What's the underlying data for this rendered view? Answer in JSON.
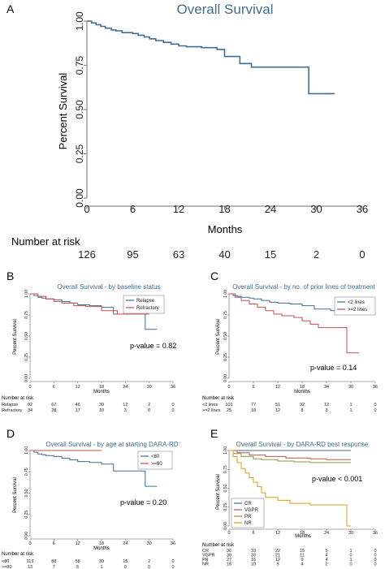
{
  "panels": {
    "A": {
      "label": "A",
      "title": "Overall Survival",
      "ylabel": "Percent Survival",
      "xlabel": "Months",
      "risk_title": "Number at risk",
      "risk": [
        "126",
        "95",
        "63",
        "40",
        "15",
        "2",
        "0"
      ]
    },
    "B": {
      "label": "B",
      "title": "Overall Survival - by baseline status",
      "ylabel": "Percent Survival",
      "xlabel": "Months",
      "pvalue": "p-value = 0.82",
      "risk_title": "Number at risk",
      "legend": [
        "Relapse",
        "Refractory"
      ],
      "risk_rows": [
        {
          "name": "Relapse",
          "values": [
            "92",
            "67",
            "46",
            "30",
            "12",
            "2",
            "0"
          ]
        },
        {
          "name": "Refractory",
          "values": [
            "34",
            "28",
            "17",
            "10",
            "3",
            "0",
            "0"
          ]
        }
      ]
    },
    "C": {
      "label": "C",
      "title": "Overall Survival - by no. of prior lines of treatment",
      "ylabel": "Percent Survival",
      "xlabel": "Months",
      "pvalue": "p-value = 0.14",
      "risk_title": "Number at risk",
      "legend": [
        "<2 lines",
        ">=2 lines"
      ],
      "risk_rows": [
        {
          "name": "<2 lines",
          "values": [
            "101",
            "77",
            "51",
            "32",
            "12",
            "1",
            "0"
          ]
        },
        {
          "name": ">=2 lines",
          "values": [
            "25",
            "18",
            "12",
            "8",
            "3",
            "1",
            "0"
          ]
        }
      ]
    },
    "D": {
      "label": "D",
      "title": "Overall Survival - by age at starting DARA-RD",
      "ylabel": "Percent Survival",
      "xlabel": "Months",
      "pvalue": "p-value = 0.20",
      "risk_title": "Number at risk",
      "legend": [
        "<80",
        ">=80"
      ],
      "risk_rows": [
        {
          "name": "<80",
          "values": [
            "113",
            "88",
            "58",
            "39",
            "15",
            "2",
            "0"
          ]
        },
        {
          "name": ">=80",
          "values": [
            "13",
            "7",
            "5",
            "1",
            "0",
            "0",
            "0"
          ]
        }
      ]
    },
    "E": {
      "label": "E",
      "title": "Overall Survival - by DARA-RD best response",
      "ylabel": "Percent Survival",
      "xlabel": "Months",
      "pvalue": "p-value < 0.001",
      "risk_title": "Number at risk",
      "legend": [
        "CR",
        "VGPR",
        "PR",
        "NR"
      ],
      "risk_rows": [
        {
          "name": "CR",
          "values": [
            "36",
            "33",
            "22",
            "15",
            "5",
            "1",
            "0"
          ]
        },
        {
          "name": "VGPR",
          "values": [
            "39",
            "33",
            "21",
            "11",
            "4",
            "0",
            "0"
          ]
        },
        {
          "name": "PR",
          "values": [
            "27",
            "16",
            "12",
            "9",
            "4",
            "1",
            "0"
          ]
        },
        {
          "name": "NR",
          "values": [
            "16",
            "10",
            "5",
            "4",
            "2",
            "0",
            "0"
          ]
        }
      ]
    }
  },
  "colors": {
    "blue": "#3f6e93",
    "red": "#c0504d",
    "green": "#8a9a3d",
    "gold": "#d4a017",
    "axis": "#8c8c8c",
    "title": "#3f6e93"
  },
  "chart_data": [
    {
      "panel": "A",
      "type": "line",
      "title": "Overall Survival",
      "xlabel": "Months",
      "ylabel": "Percent Survival",
      "xlim": [
        0,
        36
      ],
      "ylim": [
        0,
        1
      ],
      "xticks": [
        0,
        6,
        12,
        18,
        24,
        30,
        36
      ],
      "yticks": [
        "0.00",
        "0.25",
        "0.50",
        "0.75",
        "1.00"
      ],
      "grid": false,
      "series": [
        {
          "name": "",
          "x": [
            0,
            0.6,
            1.2,
            1.8,
            2.4,
            3.2,
            3.8,
            4.6,
            6,
            6.7,
            7.5,
            8.2,
            9,
            10,
            11,
            12,
            13,
            15,
            17,
            18,
            20,
            21.5,
            29,
            29,
            32.4
          ],
          "y": [
            1.0,
            0.99,
            0.98,
            0.97,
            0.96,
            0.95,
            0.945,
            0.935,
            0.93,
            0.92,
            0.91,
            0.9,
            0.89,
            0.88,
            0.87,
            0.86,
            0.855,
            0.85,
            0.84,
            0.8,
            0.76,
            0.74,
            0.74,
            0.59,
            0.59
          ]
        }
      ]
    },
    {
      "panel": "B",
      "type": "line",
      "title": "Overall Survival - by baseline status",
      "xlim": [
        0,
        36
      ],
      "ylim": [
        0,
        1
      ],
      "xticks": [
        0,
        6,
        12,
        18,
        24,
        30,
        36
      ],
      "yticks": [
        "0.00",
        "0.25",
        "0.50",
        "0.75",
        "1.00"
      ],
      "series": [
        {
          "name": "Relapse",
          "x": [
            0,
            1,
            2,
            3,
            4,
            6,
            8,
            10,
            12,
            15,
            18,
            21,
            29,
            29,
            32
          ],
          "y": [
            1.0,
            0.98,
            0.96,
            0.95,
            0.94,
            0.93,
            0.91,
            0.89,
            0.87,
            0.86,
            0.84,
            0.76,
            0.74,
            0.58,
            0.58
          ]
        },
        {
          "name": "Refractory",
          "x": [
            0,
            2,
            4,
            6,
            8,
            11,
            14,
            18,
            22,
            30
          ],
          "y": [
            1.0,
            0.97,
            0.94,
            0.91,
            0.89,
            0.86,
            0.85,
            0.8,
            0.76,
            0.76
          ]
        }
      ]
    },
    {
      "panel": "C",
      "type": "line",
      "title": "Overall Survival - by no. of prior lines of treatment",
      "xlim": [
        0,
        36
      ],
      "ylim": [
        0,
        1
      ],
      "xticks": [
        0,
        6,
        12,
        18,
        24,
        30,
        36
      ],
      "yticks": [
        "0.00",
        "0.25",
        "0.50",
        "0.75",
        "1.00"
      ],
      "series": [
        {
          "name": "<2 lines",
          "x": [
            0,
            1,
            2,
            3,
            5,
            6,
            8,
            10,
            12,
            15,
            18,
            21,
            25,
            28,
            32
          ],
          "y": [
            1.0,
            0.98,
            0.97,
            0.96,
            0.95,
            0.94,
            0.92,
            0.9,
            0.89,
            0.88,
            0.86,
            0.82,
            0.8,
            0.78,
            0.78
          ]
        },
        {
          "name": ">=2 lines",
          "x": [
            0,
            1.5,
            3,
            5,
            7,
            9,
            11,
            13,
            16,
            18,
            20,
            22,
            29,
            29,
            32
          ],
          "y": [
            1.0,
            0.96,
            0.92,
            0.88,
            0.84,
            0.8,
            0.76,
            0.74,
            0.72,
            0.68,
            0.64,
            0.6,
            0.6,
            0.3,
            0.3
          ]
        }
      ]
    },
    {
      "panel": "D",
      "type": "line",
      "title": "Overall Survival - by age at starting DARA-RD",
      "xlim": [
        0,
        36
      ],
      "ylim": [
        0,
        1
      ],
      "xticks": [
        0,
        6,
        12,
        18,
        24,
        30,
        36
      ],
      "yticks": [
        "0.00",
        "0.25",
        "0.50",
        "0.75",
        "1.00"
      ],
      "series": [
        {
          "name": "<80",
          "x": [
            0,
            1,
            2,
            3,
            4,
            6,
            8,
            10,
            12,
            15,
            18,
            21,
            29,
            29,
            32
          ],
          "y": [
            1.0,
            0.98,
            0.96,
            0.95,
            0.94,
            0.93,
            0.91,
            0.89,
            0.87,
            0.86,
            0.84,
            0.76,
            0.74,
            0.58,
            0.58
          ]
        },
        {
          "name": ">=80",
          "x": [
            0,
            18
          ],
          "y": [
            1.0,
            1.0
          ]
        }
      ]
    },
    {
      "panel": "E",
      "type": "line",
      "title": "Overall Survival - by DARA-RD best response",
      "xlim": [
        0,
        36
      ],
      "ylim": [
        0,
        1
      ],
      "xticks": [
        0,
        6,
        12,
        18,
        24,
        30,
        36
      ],
      "yticks": [
        "0.00",
        "0.25",
        "0.50",
        "0.75",
        "1.00"
      ],
      "series": [
        {
          "name": "CR",
          "x": [
            0,
            22,
            30
          ],
          "y": [
            1.0,
            1.0,
            1.0
          ]
        },
        {
          "name": "VGPR",
          "x": [
            0,
            2,
            5,
            9,
            14,
            20,
            24,
            30
          ],
          "y": [
            1.0,
            0.97,
            0.94,
            0.92,
            0.9,
            0.89,
            0.88,
            0.88
          ]
        },
        {
          "name": "PR",
          "x": [
            0,
            1,
            3,
            6,
            8,
            12,
            16,
            20,
            30
          ],
          "y": [
            1.0,
            0.96,
            0.92,
            0.89,
            0.88,
            0.86,
            0.85,
            0.84,
            0.84
          ]
        },
        {
          "name": "NR",
          "x": [
            0,
            1,
            2,
            3,
            4,
            5,
            6,
            7,
            8,
            9,
            12,
            15,
            20,
            29,
            29,
            30
          ],
          "y": [
            1.0,
            0.92,
            0.84,
            0.76,
            0.7,
            0.64,
            0.58,
            0.52,
            0.44,
            0.38,
            0.34,
            0.3,
            0.28,
            0.28,
            0.0,
            0.0
          ]
        }
      ]
    }
  ]
}
